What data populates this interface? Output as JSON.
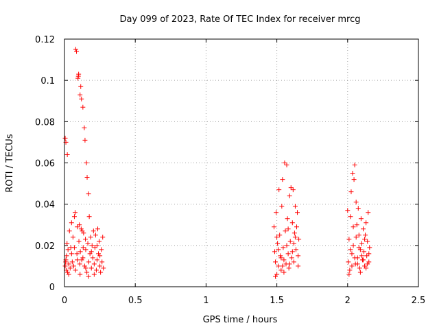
{
  "chart_data": {
    "type": "scatter",
    "title": "Day 099 of 2023, Rate Of TEC Index for receiver mrcg",
    "xlabel": "GPS time / hours",
    "ylabel": "ROTI / TECUs",
    "xlim": [
      0,
      2.5
    ],
    "ylim": [
      0,
      0.12
    ],
    "xticks": [
      0,
      0.5,
      1,
      1.5,
      2,
      2.5
    ],
    "xtick_labels": [
      "0",
      "0.5",
      "1",
      "1.5",
      "2",
      "2.5"
    ],
    "yticks": [
      0,
      0.02,
      0.04,
      0.06,
      0.08,
      0.1,
      0.12
    ],
    "ytick_labels": [
      "0",
      "0.02",
      "0.04",
      "0.06",
      "0.08",
      "0.1",
      "0.12"
    ],
    "grid": true,
    "marker": "+",
    "marker_color": "#ff0000",
    "grid_color": "#a0a0a0",
    "series": [
      {
        "name": "ROTI",
        "points": [
          [
            0.005,
            0.072
          ],
          [
            0.01,
            0.07
          ],
          [
            0.02,
            0.064
          ],
          [
            0.005,
            0.01
          ],
          [
            0.008,
            0.012
          ],
          [
            0.012,
            0.008
          ],
          [
            0.015,
            0.015
          ],
          [
            0.018,
            0.021
          ],
          [
            0.022,
            0.007
          ],
          [
            0.025,
            0.018
          ],
          [
            0.03,
            0.011
          ],
          [
            0.035,
            0.027
          ],
          [
            0.04,
            0.009
          ],
          [
            0.045,
            0.019
          ],
          [
            0.05,
            0.031
          ],
          [
            0.055,
            0.012
          ],
          [
            0.06,
            0.024
          ],
          [
            0.065,
            0.01
          ],
          [
            0.07,
            0.034
          ],
          [
            0.075,
            0.036
          ],
          [
            0.078,
            0.008
          ],
          [
            0.08,
            0.115
          ],
          [
            0.085,
            0.114
          ],
          [
            0.088,
            0.016
          ],
          [
            0.09,
            0.029
          ],
          [
            0.095,
            0.101
          ],
          [
            0.098,
            0.102
          ],
          [
            0.1,
            0.103
          ],
          [
            0.102,
            0.022
          ],
          [
            0.105,
            0.03
          ],
          [
            0.108,
            0.011
          ],
          [
            0.11,
            0.093
          ],
          [
            0.112,
            0.017
          ],
          [
            0.115,
            0.097
          ],
          [
            0.118,
            0.028
          ],
          [
            0.12,
            0.091
          ],
          [
            0.122,
            0.013
          ],
          [
            0.125,
            0.027
          ],
          [
            0.13,
            0.087
          ],
          [
            0.132,
            0.019
          ],
          [
            0.135,
            0.026
          ],
          [
            0.14,
            0.077
          ],
          [
            0.142,
            0.01
          ],
          [
            0.145,
            0.071
          ],
          [
            0.148,
            0.023
          ],
          [
            0.15,
            0.018
          ],
          [
            0.155,
            0.06
          ],
          [
            0.158,
            0.007
          ],
          [
            0.16,
            0.053
          ],
          [
            0.165,
            0.021
          ],
          [
            0.17,
            0.045
          ],
          [
            0.172,
            0.012
          ],
          [
            0.175,
            0.034
          ],
          [
            0.18,
            0.016
          ],
          [
            0.185,
            0.024
          ],
          [
            0.19,
            0.009
          ],
          [
            0.195,
            0.02
          ],
          [
            0.2,
            0.014
          ],
          [
            0.205,
            0.027
          ],
          [
            0.21,
            0.011
          ],
          [
            0.215,
            0.019
          ],
          [
            0.22,
            0.025
          ],
          [
            0.225,
            0.008
          ],
          [
            0.23,
            0.013
          ],
          [
            0.235,
            0.028
          ],
          [
            0.24,
            0.016
          ],
          [
            0.245,
            0.022
          ],
          [
            0.25,
            0.01
          ],
          [
            0.255,
            0.007
          ],
          [
            0.26,
            0.018
          ],
          [
            0.265,
            0.012
          ],
          [
            0.27,
            0.024
          ],
          [
            0.275,
            0.009
          ],
          [
            0.01,
            0.013
          ],
          [
            0.03,
            0.006
          ],
          [
            0.05,
            0.016
          ],
          [
            0.07,
            0.019
          ],
          [
            0.09,
            0.013
          ],
          [
            0.11,
            0.006
          ],
          [
            0.13,
            0.014
          ],
          [
            0.15,
            0.009
          ],
          [
            0.17,
            0.005
          ],
          [
            0.19,
            0.017
          ],
          [
            0.21,
            0.006
          ],
          [
            0.23,
            0.02
          ],
          [
            0.25,
            0.015
          ],
          [
            1.48,
            0.029
          ],
          [
            1.485,
            0.017
          ],
          [
            1.49,
            0.012
          ],
          [
            1.495,
            0.036
          ],
          [
            1.5,
            0.006
          ],
          [
            1.505,
            0.021
          ],
          [
            1.51,
            0.01
          ],
          [
            1.515,
            0.047
          ],
          [
            1.52,
            0.025
          ],
          [
            1.525,
            0.015
          ],
          [
            1.53,
            0.008
          ],
          [
            1.535,
            0.039
          ],
          [
            1.54,
            0.052
          ],
          [
            1.545,
            0.019
          ],
          [
            1.55,
            0.013
          ],
          [
            1.555,
            0.06
          ],
          [
            1.56,
            0.027
          ],
          [
            1.565,
            0.011
          ],
          [
            1.57,
            0.059
          ],
          [
            1.575,
            0.033
          ],
          [
            1.58,
            0.016
          ],
          [
            1.585,
            0.009
          ],
          [
            1.59,
            0.044
          ],
          [
            1.595,
            0.022
          ],
          [
            1.6,
            0.048
          ],
          [
            1.605,
            0.014
          ],
          [
            1.61,
            0.031
          ],
          [
            1.615,
            0.047
          ],
          [
            1.62,
            0.012
          ],
          [
            1.625,
            0.026
          ],
          [
            1.63,
            0.039
          ],
          [
            1.635,
            0.018
          ],
          [
            1.64,
            0.029
          ],
          [
            1.645,
            0.036
          ],
          [
            1.65,
            0.01
          ],
          [
            1.655,
            0.023
          ],
          [
            1.49,
            0.005
          ],
          [
            1.51,
            0.018
          ],
          [
            1.53,
            0.014
          ],
          [
            1.55,
            0.007
          ],
          [
            1.57,
            0.02
          ],
          [
            1.59,
            0.011
          ],
          [
            1.61,
            0.017
          ],
          [
            1.63,
            0.024
          ],
          [
            1.65,
            0.015
          ],
          [
            1.5,
            0.024
          ],
          [
            1.54,
            0.01
          ],
          [
            1.58,
            0.028
          ],
          [
            1.62,
            0.021
          ],
          [
            2.0,
            0.037
          ],
          [
            2.005,
            0.012
          ],
          [
            2.01,
            0.023
          ],
          [
            2.015,
            0.008
          ],
          [
            2.02,
            0.034
          ],
          [
            2.025,
            0.046
          ],
          [
            2.03,
            0.016
          ],
          [
            2.035,
            0.055
          ],
          [
            2.04,
            0.02
          ],
          [
            2.045,
            0.052
          ],
          [
            2.05,
            0.059
          ],
          [
            2.055,
            0.011
          ],
          [
            2.06,
            0.041
          ],
          [
            2.065,
            0.03
          ],
          [
            2.07,
            0.014
          ],
          [
            2.075,
            0.038
          ],
          [
            2.08,
            0.025
          ],
          [
            2.085,
            0.009
          ],
          [
            2.09,
            0.018
          ],
          [
            2.095,
            0.033
          ],
          [
            2.1,
            0.021
          ],
          [
            2.105,
            0.013
          ],
          [
            2.11,
            0.028
          ],
          [
            2.115,
            0.017
          ],
          [
            2.12,
            0.01
          ],
          [
            2.125,
            0.025
          ],
          [
            2.13,
            0.031
          ],
          [
            2.135,
            0.015
          ],
          [
            2.14,
            0.022
          ],
          [
            2.145,
            0.036
          ],
          [
            2.15,
            0.012
          ],
          [
            2.155,
            0.019
          ],
          [
            2.01,
            0.006
          ],
          [
            2.03,
            0.01
          ],
          [
            2.05,
            0.014
          ],
          [
            2.07,
            0.011
          ],
          [
            2.09,
            0.007
          ],
          [
            2.11,
            0.013
          ],
          [
            2.13,
            0.009
          ],
          [
            2.15,
            0.016
          ],
          [
            2.02,
            0.018
          ],
          [
            2.06,
            0.024
          ],
          [
            2.1,
            0.015
          ],
          [
            2.14,
            0.011
          ],
          [
            2.04,
            0.029
          ],
          [
            2.08,
            0.019
          ],
          [
            2.12,
            0.023
          ]
        ]
      }
    ]
  }
}
